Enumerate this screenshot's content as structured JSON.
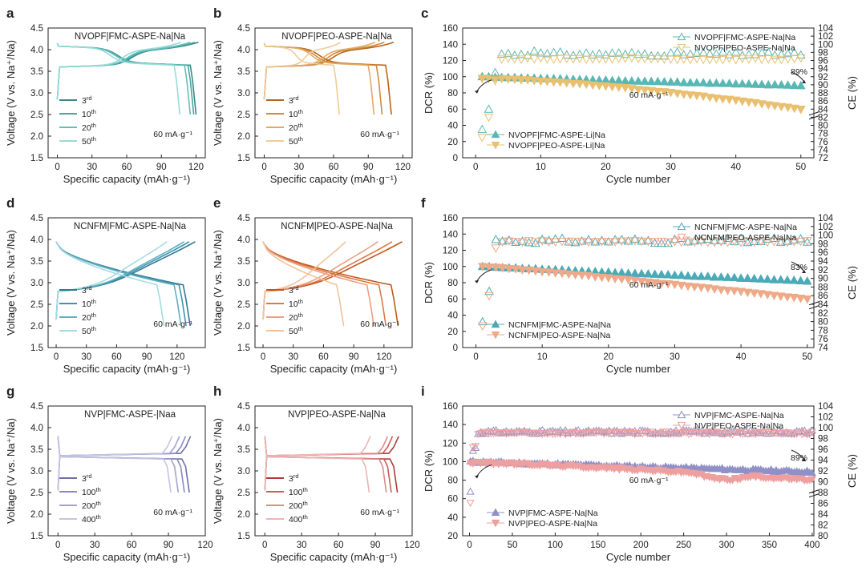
{
  "chart_data": [
    {
      "id": "a",
      "type": "line",
      "panel": "a",
      "title": "NVOPF|FMC-ASPE-Na|Na",
      "xlabel": "Specific capacity (mAh·g⁻¹)",
      "ylabel": "Voltage (V vs. Na⁺/Na)",
      "xlim": [
        -8,
        128
      ],
      "ylim": [
        1.5,
        4.5
      ],
      "xticks": [
        "0",
        "30",
        "60",
        "90",
        "120"
      ],
      "yticks": [
        "1.5",
        "2.0",
        "2.5",
        "3.0",
        "3.5",
        "4.0",
        "4.5"
      ],
      "rate": "60 mA·g⁻¹",
      "series": [
        {
          "name": "3",
          "sup": "rd",
          "color": "#3a8a8a",
          "charge_end": 122,
          "discharge_end": 120,
          "vcut_low": 2.5,
          "vmax": 4.2
        },
        {
          "name": "10",
          "sup": "th",
          "color": "#4aa6a2",
          "charge_end": 119,
          "discharge_end": 118,
          "vcut_low": 2.5,
          "vmax": 4.2
        },
        {
          "name": "20",
          "sup": "th",
          "color": "#62bfb8",
          "charge_end": 115,
          "discharge_end": 115,
          "vcut_low": 2.5,
          "vmax": 4.2
        },
        {
          "name": "50",
          "sup": "th",
          "color": "#98dcd6",
          "charge_end": 107,
          "discharge_end": 106,
          "vcut_low": 2.5,
          "vmax": 4.2
        }
      ]
    },
    {
      "id": "b",
      "type": "line",
      "panel": "b",
      "title": "NVOPF|PEO-ASPE-Na|Na",
      "xlabel": "Specific capacity (mAh·g⁻¹)",
      "ylabel": "Voltage (V vs. Na⁺/Na)",
      "xlim": [
        -8,
        128
      ],
      "ylim": [
        1.5,
        4.5
      ],
      "xticks": [
        "0",
        "30",
        "60",
        "90",
        "120"
      ],
      "yticks": [
        "1.5",
        "2.0",
        "2.5",
        "3.0",
        "3.5",
        "4.0",
        "4.5"
      ],
      "rate": "60 mA·g⁻¹",
      "series": [
        {
          "name": "3",
          "sup": "rd",
          "color": "#b8641c",
          "charge_end": 112,
          "discharge_end": 110,
          "vcut_low": 2.5,
          "vmax": 4.2
        },
        {
          "name": "10",
          "sup": "th",
          "color": "#d18a3a",
          "charge_end": 104,
          "discharge_end": 102,
          "vcut_low": 2.5,
          "vmax": 4.2
        },
        {
          "name": "20",
          "sup": "th",
          "color": "#e0aa62",
          "charge_end": 96,
          "discharge_end": 95,
          "vcut_low": 2.5,
          "vmax": 4.2
        },
        {
          "name": "50",
          "sup": "th",
          "color": "#efcb94",
          "charge_end": 66,
          "discharge_end": 65,
          "vcut_low": 2.5,
          "vmax": 4.2
        }
      ]
    },
    {
      "id": "c",
      "type": "scatter",
      "panel": "c",
      "xlabel": "Cycle number",
      "ylabel": "DCR (%)",
      "y2label": "CE (%)",
      "xlim": [
        -2,
        52
      ],
      "ylim": [
        0,
        160
      ],
      "y2lim": [
        72,
        104
      ],
      "xticks": [
        "0",
        "10",
        "20",
        "30",
        "40",
        "50"
      ],
      "yticks": [
        "0",
        "20",
        "40",
        "60",
        "80",
        "100",
        "120",
        "140",
        "160"
      ],
      "y2ticks": [
        "72",
        "74",
        "76",
        "78",
        "80",
        "82",
        "84",
        "86",
        "88",
        "90",
        "92",
        "94",
        "96",
        "98",
        "100",
        "102",
        "104"
      ],
      "x_max": 50,
      "rate": "60 mA·g⁻¹",
      "retention": "89%",
      "legend_ce": [
        "NVOPF|FMC-ASPE-Na|Na",
        "NVOPF|PEO-ASPE-Na|Na"
      ],
      "legend_dcr": [
        "NVOPF|FMC-ASPE-Li|Na",
        "NVOPF|PEO-ASPE-Li|Na"
      ],
      "series": [
        {
          "name": "FMC",
          "color": "#5ab8b4",
          "dcr_start": 100,
          "dcr_end": 89,
          "dcr_curve": 1.0,
          "ce_first": [
            79,
            84,
            93
          ],
          "ce_plateau": 97.6,
          "ce_noise": 0.5
        },
        {
          "name": "PEO",
          "color": "#e8c070",
          "dcr_start": 98,
          "dcr_end": 60,
          "dcr_curve": 1.45,
          "ce_first": [
            77,
            82,
            91
          ],
          "ce_plateau": 96.4,
          "ce_noise": 0.25
        }
      ]
    },
    {
      "id": "d",
      "type": "line",
      "panel": "d",
      "title": "NCNFM|FMC-ASPE-Na|Na",
      "xlabel": "Specific capacity (mAh·g⁻¹)",
      "ylabel": "Voltage (V vs. Na⁺/Na)",
      "xlim": [
        -8,
        148
      ],
      "ylim": [
        1.5,
        4.5
      ],
      "xticks": [
        "0",
        "30",
        "60",
        "90",
        "120"
      ],
      "yticks": [
        "1.5",
        "2.0",
        "2.5",
        "3.0",
        "3.5",
        "4.0",
        "4.5"
      ],
      "rate": "60 mA·g⁻¹",
      "series": [
        {
          "name": "3",
          "sup": "rd",
          "color": "#2f7a93",
          "charge_end": 138,
          "discharge_end": 133,
          "vcut_low": 2.0,
          "vmax": 4.0
        },
        {
          "name": "10",
          "sup": "th",
          "color": "#3d93ab",
          "charge_end": 132,
          "discharge_end": 129,
          "vcut_low": 2.0,
          "vmax": 4.0
        },
        {
          "name": "20",
          "sup": "th",
          "color": "#5fb0c2",
          "charge_end": 127,
          "discharge_end": 124,
          "vcut_low": 2.0,
          "vmax": 4.0
        },
        {
          "name": "50",
          "sup": "th",
          "color": "#a6dbe3",
          "charge_end": 110,
          "discharge_end": 107,
          "vcut_low": 2.0,
          "vmax": 4.0
        }
      ]
    },
    {
      "id": "e",
      "type": "line",
      "panel": "e",
      "title": "NCNFM|PEO-ASPE-Na|Na",
      "xlabel": "Specific capacity (mAh·g⁻¹)",
      "ylabel": "Voltage (V vs. Na⁺/Na)",
      "xlim": [
        -8,
        148
      ],
      "ylim": [
        1.5,
        4.5
      ],
      "xticks": [
        "0",
        "30",
        "60",
        "90",
        "120"
      ],
      "yticks": [
        "1.5",
        "2.0",
        "2.5",
        "3.0",
        "3.5",
        "4.0",
        "4.5"
      ],
      "rate": "60 mA·g⁻¹",
      "series": [
        {
          "name": "3",
          "sup": "rd",
          "color": "#c4571b",
          "charge_end": 138,
          "discharge_end": 134,
          "vcut_low": 2.0,
          "vmax": 4.0
        },
        {
          "name": "10",
          "sup": "th",
          "color": "#db7a44",
          "charge_end": 128,
          "discharge_end": 122,
          "vcut_low": 2.0,
          "vmax": 4.0
        },
        {
          "name": "20",
          "sup": "th",
          "color": "#ec9f82",
          "charge_end": 114,
          "discharge_end": 110,
          "vcut_low": 2.0,
          "vmax": 4.0
        },
        {
          "name": "50",
          "sup": "th",
          "color": "#f2c39a",
          "charge_end": 82,
          "discharge_end": 80,
          "vcut_low": 2.0,
          "vmax": 4.0
        }
      ]
    },
    {
      "id": "f",
      "type": "scatter",
      "panel": "f",
      "xlabel": "Cycle number",
      "ylabel": "DCR (%)",
      "y2label": "CE (%)",
      "xlim": [
        -2,
        51
      ],
      "ylim": [
        0,
        160
      ],
      "y2lim": [
        74,
        104
      ],
      "xticks": [
        "0",
        "10",
        "20",
        "30",
        "40",
        "50"
      ],
      "yticks": [
        "0",
        "20",
        "40",
        "60",
        "80",
        "100",
        "120",
        "140",
        "160"
      ],
      "y2ticks": [
        "74",
        "76",
        "78",
        "80",
        "82",
        "84",
        "86",
        "88",
        "90",
        "92",
        "94",
        "96",
        "98",
        "100",
        "102",
        "104"
      ],
      "x_max": 50,
      "rate": "60 mA·g⁻¹",
      "retention": "83%",
      "legend_ce": [
        "NCNFM|FMC-ASPE-Na|Na",
        "NCNFM|PEO-ASPE-Na|Na"
      ],
      "legend_dcr": [
        "NCNFM|FMC-ASPE-Na|Na",
        "NCNFM|PEO-ASPE-Na|Na"
      ],
      "series": [
        {
          "name": "FMC",
          "color": "#4aaab8",
          "dcr_start": 100,
          "dcr_end": 82,
          "dcr_curve": 1.0,
          "ce_first": [
            80,
            87,
            99
          ],
          "ce_plateau": 98.7,
          "ce_noise": 0.6
        },
        {
          "name": "PEO",
          "color": "#eeaa88",
          "dcr_start": 100,
          "dcr_end": 60,
          "dcr_curve": 1.1,
          "ce_first": [
            79,
            86,
            97
          ],
          "ce_plateau": 98.5,
          "ce_noise": 0.2
        }
      ]
    },
    {
      "id": "g",
      "type": "line",
      "panel": "g",
      "title": "NVP|FMC-ASPE-|Naa",
      "xlabel": "Specific capacity (mAh·g⁻¹)",
      "ylabel": "Voltage (V vs. Na⁺/Na)",
      "xlim": [
        -8,
        120
      ],
      "ylim": [
        1.5,
        4.5
      ],
      "xticks": [
        "0",
        "30",
        "60",
        "90",
        "120"
      ],
      "yticks": [
        "1.5",
        "2.0",
        "2.5",
        "3.0",
        "3.5",
        "4.0",
        "4.5"
      ],
      "rate": "60 mA·g⁻¹",
      "series": [
        {
          "name": "3",
          "sup": "rd",
          "color": "#7070a8",
          "charge_end": 108,
          "discharge_end": 107,
          "vcut_low": 2.5,
          "vmax": 3.8
        },
        {
          "name": "100",
          "sup": "th",
          "color": "#8a8abf",
          "charge_end": 104,
          "discharge_end": 103,
          "vcut_low": 2.5,
          "vmax": 3.8
        },
        {
          "name": "200",
          "sup": "th",
          "color": "#a2a2d0",
          "charge_end": 99,
          "discharge_end": 98,
          "vcut_low": 2.5,
          "vmax": 3.8
        },
        {
          "name": "400",
          "sup": "th",
          "color": "#c4c4e2",
          "charge_end": 93,
          "discharge_end": 92,
          "vcut_low": 2.5,
          "vmax": 3.8
        }
      ]
    },
    {
      "id": "h",
      "type": "line",
      "panel": "h",
      "title": "NVP|PEO-ASPE-Na|Na",
      "xlabel": "Specific capacity (mAh·g⁻¹)",
      "ylabel": "Voltage (V vs. Na⁺/Na)",
      "xlim": [
        -8,
        120
      ],
      "ylim": [
        1.5,
        4.5
      ],
      "xticks": [
        "0",
        "30",
        "60",
        "90",
        "120"
      ],
      "yticks": [
        "1.5",
        "2.0",
        "2.5",
        "3.0",
        "3.5",
        "4.0",
        "4.5"
      ],
      "rate": "60 mA·g⁻¹",
      "series": [
        {
          "name": "3",
          "sup": "rd",
          "color": "#b03a3a",
          "charge_end": 109,
          "discharge_end": 108,
          "vcut_low": 2.5,
          "vmax": 3.8
        },
        {
          "name": "100",
          "sup": "th",
          "color": "#cc5c5c",
          "charge_end": 104,
          "discharge_end": 103,
          "vcut_low": 2.5,
          "vmax": 3.8
        },
        {
          "name": "200",
          "sup": "th",
          "color": "#e08a8a",
          "charge_end": 100,
          "discharge_end": 99,
          "vcut_low": 2.5,
          "vmax": 3.8
        },
        {
          "name": "400",
          "sup": "th",
          "color": "#edb4b4",
          "charge_end": 86,
          "discharge_end": 85,
          "vcut_low": 2.5,
          "vmax": 3.8
        }
      ]
    },
    {
      "id": "i",
      "type": "scatter",
      "panel": "i",
      "xlabel": "Cycle number",
      "ylabel": "DCR (%)",
      "y2label": "CE (%)",
      "xlim": [
        -8,
        402
      ],
      "ylim": [
        20,
        160
      ],
      "y2lim": [
        80,
        104
      ],
      "xticks": [
        "0",
        "50",
        "100",
        "150",
        "200",
        "250",
        "300",
        "350",
        "400"
      ],
      "yticks": [
        "20",
        "40",
        "60",
        "80",
        "100",
        "120",
        "140",
        "160"
      ],
      "y2ticks": [
        "80",
        "82",
        "84",
        "86",
        "88",
        "90",
        "92",
        "94",
        "96",
        "98",
        "100",
        "102",
        "104"
      ],
      "x_max": 400,
      "rate": "60 mA·g⁻¹",
      "retention": "89%",
      "legend_ce": [
        "NVP|FMC-ASPE-Na|Na",
        "NVP|PEO-ASPE-Na|Na"
      ],
      "legend_dcr": [
        "NVP|FMC-ASPE-Na|Na",
        "NVP|PEO-ASPE-Na|Na"
      ],
      "series": [
        {
          "name": "FMC",
          "color": "#8f90c8",
          "dcr_start": 100,
          "dcr_end": 89,
          "dcr_curve": 1.0,
          "ce_first": [
            88,
            95,
            97
          ],
          "ce_plateau": 99.2,
          "ce_noise": 0.35
        },
        {
          "name": "PEO",
          "color": "#ee9f9f",
          "dcr_start": 99,
          "dcr_end": 80,
          "dcr_curve": 1.3,
          "ce_first": [
            86,
            96,
            98
          ],
          "ce_plateau": 99.0,
          "ce_noise": 0.25
        }
      ]
    }
  ]
}
